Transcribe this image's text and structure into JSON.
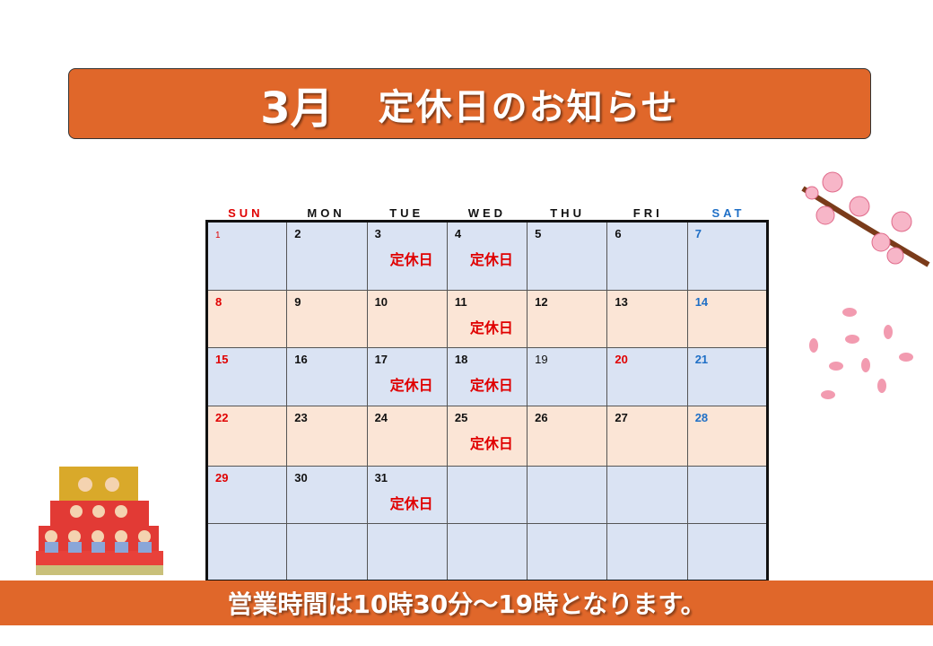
{
  "header": {
    "month": "3月",
    "title": "定休日のお知らせ"
  },
  "days_of_week": [
    "SUN",
    "MON",
    "TUE",
    "WED",
    "THU",
    "FRI",
    "SAT"
  ],
  "closed_label": "定休日",
  "weeks": [
    [
      {
        "d": "1",
        "c": "sun first"
      },
      {
        "d": "2"
      },
      {
        "d": "3",
        "closed": true
      },
      {
        "d": "4",
        "closed": true
      },
      {
        "d": "5"
      },
      {
        "d": "6"
      },
      {
        "d": "7",
        "c": "sat"
      }
    ],
    [
      {
        "d": "8",
        "c": "sun"
      },
      {
        "d": "9"
      },
      {
        "d": "10"
      },
      {
        "d": "11",
        "closed": true
      },
      {
        "d": "12"
      },
      {
        "d": "13"
      },
      {
        "d": "14",
        "c": "sat"
      }
    ],
    [
      {
        "d": "15",
        "c": "sun"
      },
      {
        "d": "16"
      },
      {
        "d": "17",
        "closed": true
      },
      {
        "d": "18",
        "closed": true
      },
      {
        "d": "19",
        "c": "norm"
      },
      {
        "d": "20",
        "c": "hol"
      },
      {
        "d": "21",
        "c": "sat"
      }
    ],
    [
      {
        "d": "22",
        "c": "sun"
      },
      {
        "d": "23"
      },
      {
        "d": "24"
      },
      {
        "d": "25",
        "closed": true
      },
      {
        "d": "26"
      },
      {
        "d": "27"
      },
      {
        "d": "28",
        "c": "sat"
      }
    ],
    [
      {
        "d": "29",
        "c": "sun"
      },
      {
        "d": "30"
      },
      {
        "d": "31",
        "closed": true
      },
      {},
      {},
      {},
      {}
    ],
    [
      {},
      {},
      {},
      {},
      {},
      {},
      {}
    ]
  ],
  "footer": {
    "text": "営業時間は10時30分～19時となります。"
  },
  "colors": {
    "accent": "#e0672a",
    "row_blue": "#dae3f3",
    "row_peach": "#fbe5d6",
    "sunday": "#e00000",
    "saturday": "#1f6fc6"
  }
}
